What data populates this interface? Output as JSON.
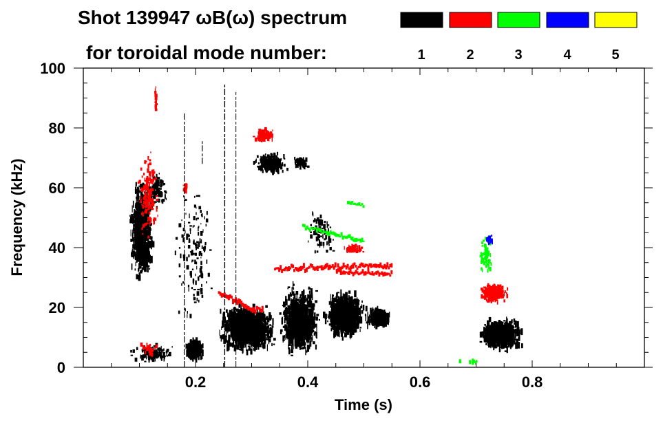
{
  "chart_data": {
    "type": "heatmap",
    "title_line1": "Shot 139947 ωB(ω) spectrum",
    "title_line2": "for toroidal mode number:",
    "xlabel": "Time (s)",
    "ylabel": "Frequency (kHz)",
    "xlim": [
      0,
      1.0
    ],
    "ylim": [
      0,
      100
    ],
    "xticks": [
      0.2,
      0.4,
      0.6,
      0.8
    ],
    "xtick_labels": [
      "0.2",
      "0.4",
      "0.6",
      "0.8"
    ],
    "x_minor_step": 0.05,
    "yticks": [
      0,
      20,
      40,
      60,
      80,
      100
    ],
    "ytick_labels": [
      "0",
      "20",
      "40",
      "60",
      "80",
      "100"
    ],
    "y_minor_step": 5,
    "legend": [
      {
        "mode": "1",
        "color": "#000000"
      },
      {
        "mode": "2",
        "color": "#ff0000"
      },
      {
        "mode": "3",
        "color": "#00ff00"
      },
      {
        "mode": "4",
        "color": "#0000ff"
      },
      {
        "mode": "5",
        "color": "#ffff00"
      }
    ],
    "regions": [
      {
        "mode": 1,
        "t": [
          0.08,
          0.125
        ],
        "f": [
          28,
          64
        ],
        "density": 900
      },
      {
        "mode": 1,
        "t": [
          0.11,
          0.15
        ],
        "f": [
          52,
          66
        ],
        "density": 120
      },
      {
        "mode": 1,
        "t": [
          0.08,
          0.165
        ],
        "f": [
          1,
          8
        ],
        "density": 160
      },
      {
        "mode": 1,
        "t": [
          0.178,
          0.215
        ],
        "f": [
          2,
          10
        ],
        "density": 300
      },
      {
        "mode": 1,
        "t": [
          0.235,
          0.345
        ],
        "f": [
          4,
          22
        ],
        "density": 1300
      },
      {
        "mode": 1,
        "t": [
          0.345,
          0.425
        ],
        "f": [
          3,
          28
        ],
        "density": 900
      },
      {
        "mode": 1,
        "t": [
          0.425,
          0.505
        ],
        "f": [
          9,
          26
        ],
        "density": 900
      },
      {
        "mode": 1,
        "t": [
          0.5,
          0.55
        ],
        "f": [
          13,
          20
        ],
        "density": 300
      },
      {
        "mode": 1,
        "t": [
          0.3,
          0.365
        ],
        "f": [
          64,
          72
        ],
        "density": 250
      },
      {
        "mode": 1,
        "t": [
          0.37,
          0.4
        ],
        "f": [
          66,
          71
        ],
        "density": 60
      },
      {
        "mode": 1,
        "t": [
          0.395,
          0.45
        ],
        "f": [
          35,
          55
        ],
        "density": 80
      },
      {
        "mode": 1,
        "t": [
          0.7,
          0.785
        ],
        "f": [
          5,
          17
        ],
        "density": 700
      },
      {
        "mode": 1,
        "t": [
          0.15,
          0.24
        ],
        "f": [
          10,
          70
        ],
        "density": 140
      },
      {
        "mode": 2,
        "t": [
          0.095,
          0.135
        ],
        "f": [
          40,
          75
        ],
        "density": 160
      },
      {
        "mode": 2,
        "t": [
          0.125,
          0.13
        ],
        "f": [
          82,
          96
        ],
        "density": 20
      },
      {
        "mode": 2,
        "t": [
          0.3,
          0.34
        ],
        "f": [
          75,
          80
        ],
        "density": 140
      },
      {
        "mode": 2,
        "t": [
          0.175,
          0.185
        ],
        "f": [
          58,
          62
        ],
        "density": 20
      },
      {
        "mode": 2,
        "t": [
          0.7,
          0.76
        ],
        "f": [
          21,
          29
        ],
        "density": 220
      },
      {
        "mode": 2,
        "t": [
          0.46,
          0.5
        ],
        "f": [
          38,
          41
        ],
        "density": 60
      },
      {
        "mode": 2,
        "t": [
          0.09,
          0.14
        ],
        "f": [
          3,
          9
        ],
        "density": 25
      },
      {
        "mode": 3,
        "t": [
          0.7,
          0.73
        ],
        "f": [
          30,
          45
        ],
        "density": 70
      },
      {
        "mode": 3,
        "t": [
          0.66,
          0.72
        ],
        "f": [
          1,
          3
        ],
        "density": 10
      },
      {
        "mode": 4,
        "t": [
          0.715,
          0.73
        ],
        "f": [
          40,
          45
        ],
        "density": 25
      }
    ],
    "lines": [
      {
        "mode": 2,
        "t": [
          0.24,
          0.3
        ],
        "f": [
          25,
          19
        ],
        "width": 1.5
      },
      {
        "mode": 2,
        "t": [
          0.3,
          0.32
        ],
        "f": [
          19,
          19
        ],
        "width": 1.5
      },
      {
        "mode": 2,
        "t": [
          0.34,
          0.55
        ],
        "f": [
          33,
          34
        ],
        "width": 1.2
      },
      {
        "mode": 2,
        "t": [
          0.45,
          0.55
        ],
        "f": [
          32,
          31
        ],
        "width": 1.0
      },
      {
        "mode": 3,
        "t": [
          0.39,
          0.5
        ],
        "f": [
          47,
          42
        ],
        "width": 1.0
      },
      {
        "mode": 3,
        "t": [
          0.47,
          0.5
        ],
        "f": [
          55,
          54
        ],
        "width": 0.8
      },
      {
        "mode": 1,
        "t": [
          0.18,
          0.18
        ],
        "f": [
          0,
          85
        ],
        "width": 0.6
      },
      {
        "mode": 1,
        "t": [
          0.252,
          0.252
        ],
        "f": [
          0,
          95
        ],
        "width": 0.7
      },
      {
        "mode": 1,
        "t": [
          0.272,
          0.272
        ],
        "f": [
          0,
          92
        ],
        "width": 0.5
      },
      {
        "mode": 1,
        "t": [
          0.212,
          0.212
        ],
        "f": [
          68,
          76
        ],
        "width": 0.6
      }
    ]
  }
}
